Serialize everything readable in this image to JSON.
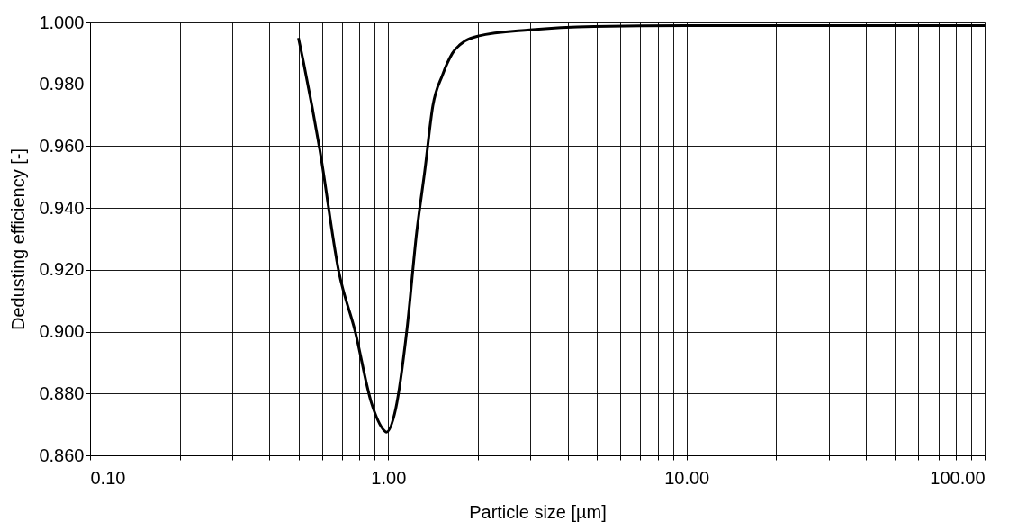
{
  "chart_data": {
    "type": "line",
    "xlabel": "Particle size [µm]",
    "ylabel": "Dedusting efficiency [-]",
    "log": "x",
    "grid": true,
    "marker": "none",
    "line_style": "solid",
    "xlim": [
      0.1,
      100
    ],
    "ylim": [
      0.86,
      1.0
    ],
    "xticks": [
      {
        "value": 0.1,
        "label": "0.10"
      },
      {
        "value": 0.2,
        "label": null
      },
      {
        "value": 0.3,
        "label": null
      },
      {
        "value": 0.4,
        "label": null
      },
      {
        "value": 0.5,
        "label": null
      },
      {
        "value": 0.6,
        "label": null
      },
      {
        "value": 0.7,
        "label": null
      },
      {
        "value": 0.8,
        "label": null
      },
      {
        "value": 0.9,
        "label": null
      },
      {
        "value": 1,
        "label": "1.00"
      },
      {
        "value": 2,
        "label": null
      },
      {
        "value": 3,
        "label": null
      },
      {
        "value": 4,
        "label": null
      },
      {
        "value": 5,
        "label": null
      },
      {
        "value": 6,
        "label": null
      },
      {
        "value": 7,
        "label": null
      },
      {
        "value": 8,
        "label": null
      },
      {
        "value": 9,
        "label": null
      },
      {
        "value": 10,
        "label": "10.00"
      },
      {
        "value": 20,
        "label": null
      },
      {
        "value": 30,
        "label": null
      },
      {
        "value": 40,
        "label": null
      },
      {
        "value": 50,
        "label": null
      },
      {
        "value": 60,
        "label": null
      },
      {
        "value": 70,
        "label": null
      },
      {
        "value": 80,
        "label": null
      },
      {
        "value": 90,
        "label": null
      },
      {
        "value": 100,
        "label": "100.00"
      }
    ],
    "yticks": [
      {
        "value": 0.86,
        "label": "0.860"
      },
      {
        "value": 0.88,
        "label": "0.880"
      },
      {
        "value": 0.9,
        "label": "0.900"
      },
      {
        "value": 0.92,
        "label": "0.920"
      },
      {
        "value": 0.94,
        "label": "0.940"
      },
      {
        "value": 0.96,
        "label": "0.960"
      },
      {
        "value": 0.98,
        "label": "0.980"
      },
      {
        "value": 1.0,
        "label": "1.000"
      }
    ],
    "series": [
      {
        "color": "#000000",
        "x": [
          0.5,
          0.52,
          0.589,
          0.684,
          0.775,
          0.878,
          0.97,
          0.985,
          1.059,
          1.156,
          1.245,
          1.326,
          1.411,
          1.52,
          1.64,
          1.81,
          2.0,
          2.98,
          4.9,
          10,
          30,
          100
        ],
        "values": [
          0.995,
          0.987,
          0.959,
          0.919,
          0.9,
          0.877,
          0.868,
          0.8675,
          0.875,
          0.901,
          0.932,
          0.952,
          0.973,
          0.983,
          0.99,
          0.994,
          0.9956,
          0.9976,
          0.9987,
          0.999,
          0.999,
          0.999
        ]
      }
    ]
  }
}
